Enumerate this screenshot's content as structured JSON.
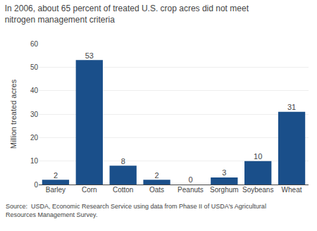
{
  "chart_data": {
    "type": "bar",
    "title": "In 2006, about 65 percent of treated U.S. crop acres did not meet\nnitrogen management criteria",
    "ylabel": "Million treated acres",
    "categories": [
      "Barley",
      "Corn",
      "Cotton",
      "Oats",
      "Peanuts",
      "Sorghum",
      "Soybeans",
      "Wheat"
    ],
    "values": [
      2,
      53,
      8,
      2,
      0,
      3,
      10,
      31
    ],
    "color": "#1a4f8a",
    "ylim": [
      0,
      60
    ],
    "yticks": [
      0,
      10,
      20,
      30,
      40,
      50,
      60
    ],
    "grid": true,
    "data_labels": true,
    "annotations": [
      "Source:  USDA, Economic Research Service using data from Phase II of USDA's Agricultural\nResources Management Survey."
    ]
  }
}
